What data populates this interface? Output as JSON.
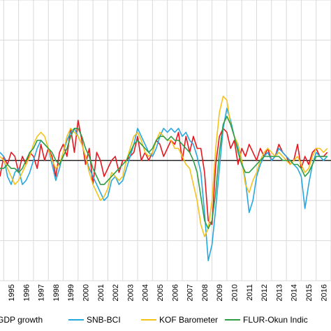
{
  "chart_data": {
    "type": "line",
    "title": "",
    "xlabel": "",
    "ylabel": "",
    "ylim": [
      -3,
      4
    ],
    "x_range": [
      1994.75,
      2017.0
    ],
    "grid": true,
    "legend_position": "bottom",
    "zero_line_color": "#000000",
    "grid_color": "#d9d9d9",
    "categories": [
      "1995",
      "1996",
      "1997",
      "1998",
      "1999",
      "2000",
      "2001",
      "2002",
      "2003",
      "2004",
      "2005",
      "2006",
      "2007",
      "2008",
      "2009",
      "2010",
      "2011",
      "2012",
      "2013",
      "2014",
      "2015",
      "2016"
    ],
    "legend": [
      {
        "label": "GDP growth",
        "color": "#e8161e"
      },
      {
        "label": "SNB-BCI",
        "color": "#27a7e0"
      },
      {
        "label": "KOF Barometer",
        "color": "#f5c21d"
      },
      {
        "label": "FLUR-Okun Indic",
        "color": "#2e9e45"
      }
    ],
    "series": [
      {
        "name": "GDP growth",
        "color": "#e8161e",
        "x": [
          1994.75,
          1995.0,
          1995.25,
          1995.5,
          1995.75,
          1996.0,
          1996.25,
          1996.5,
          1996.75,
          1997.0,
          1997.25,
          1997.5,
          1997.75,
          1998.0,
          1998.25,
          1998.5,
          1998.75,
          1999.0,
          1999.25,
          1999.5,
          1999.75,
          2000.0,
          2000.25,
          2000.5,
          2000.75,
          2001.0,
          2001.25,
          2001.5,
          2001.75,
          2002.0,
          2002.25,
          2002.5,
          2002.75,
          2003.0,
          2003.25,
          2003.5,
          2003.75,
          2004.0,
          2004.25,
          2004.5,
          2004.75,
          2005.0,
          2005.25,
          2005.5,
          2005.75,
          2006.0,
          2006.25,
          2006.5,
          2006.75,
          2007.0,
          2007.25,
          2007.5,
          2007.75,
          2008.0,
          2008.25,
          2008.5,
          2008.75,
          2009.0,
          2009.25,
          2009.5,
          2009.75,
          2010.0,
          2010.25,
          2010.5,
          2010.75,
          2011.0,
          2011.25,
          2011.5,
          2011.75,
          2012.0,
          2012.25,
          2012.5,
          2012.75,
          2013.0,
          2013.25,
          2013.5,
          2013.75,
          2014.0,
          2014.25,
          2014.5,
          2014.75,
          2015.0,
          2015.25,
          2015.5,
          2015.75,
          2016.0,
          2016.25,
          2016.5,
          2016.75
        ],
        "values": [
          -0.4,
          0.1,
          -0.1,
          0.2,
          0.1,
          -0.3,
          0.1,
          -0.1,
          0.2,
          0.1,
          -0.2,
          0.4,
          0.0,
          0.3,
          0.1,
          -0.4,
          0.2,
          0.4,
          0.1,
          0.8,
          0.2,
          1.0,
          0.5,
          -0.1,
          0.3,
          -0.6,
          0.2,
          0.0,
          -0.4,
          -0.2,
          0.0,
          0.1,
          -0.3,
          0.0,
          0.0,
          0.1,
          0.2,
          0.6,
          0.0,
          0.2,
          0.0,
          0.2,
          0.5,
          0.4,
          0.1,
          0.3,
          0.5,
          0.4,
          0.7,
          0.0,
          0.6,
          0.2,
          0.6,
          0.3,
          0.3,
          -0.3,
          -1.5,
          -1.6,
          -0.1,
          0.6,
          0.8,
          0.7,
          0.3,
          0.5,
          -0.1,
          0.3,
          0.1,
          0.4,
          0.2,
          0.0,
          0.3,
          0.1,
          0.3,
          0.0,
          0.1,
          0.4,
          0.2,
          0.1,
          -0.1,
          0.0,
          0.4,
          -0.2,
          0.1,
          -0.1,
          0.2,
          0.3,
          0.1,
          0.1,
          0.2
        ]
      },
      {
        "name": "SNB-BCI",
        "color": "#27a7e0",
        "x": [
          1994.75,
          1995.0,
          1995.25,
          1995.5,
          1995.75,
          1996.0,
          1996.25,
          1996.5,
          1996.75,
          1997.0,
          1997.25,
          1997.5,
          1997.75,
          1998.0,
          1998.25,
          1998.5,
          1998.75,
          1999.0,
          1999.25,
          1999.5,
          1999.75,
          2000.0,
          2000.25,
          2000.5,
          2000.75,
          2001.0,
          2001.25,
          2001.5,
          2001.75,
          2002.0,
          2002.25,
          2002.5,
          2002.75,
          2003.0,
          2003.25,
          2003.5,
          2003.75,
          2004.0,
          2004.25,
          2004.5,
          2004.75,
          2005.0,
          2005.25,
          2005.5,
          2005.75,
          2006.0,
          2006.25,
          2006.5,
          2006.75,
          2007.0,
          2007.25,
          2007.5,
          2007.75,
          2008.0,
          2008.25,
          2008.5,
          2008.75,
          2009.0,
          2009.25,
          2009.5,
          2009.75,
          2010.0,
          2010.25,
          2010.5,
          2010.75,
          2011.0,
          2011.25,
          2011.5,
          2011.75,
          2012.0,
          2012.25,
          2012.5,
          2012.75,
          2013.0,
          2013.25,
          2013.5,
          2013.75,
          2014.0,
          2014.25,
          2014.5,
          2014.75,
          2015.0,
          2015.25,
          2015.5,
          2015.75,
          2016.0,
          2016.25,
          2016.5,
          2016.75
        ],
        "values": [
          0.2,
          0.1,
          -0.4,
          -0.6,
          -0.3,
          -0.2,
          -0.6,
          -0.5,
          -0.3,
          0.0,
          0.3,
          0.5,
          0.4,
          0.3,
          -0.1,
          -0.5,
          -0.2,
          0.2,
          0.5,
          0.7,
          0.8,
          0.6,
          0.4,
          0.1,
          -0.2,
          -0.4,
          -0.6,
          -0.8,
          -1.0,
          -0.9,
          -0.5,
          -0.4,
          -0.6,
          -0.5,
          -0.2,
          0.1,
          0.4,
          0.8,
          0.6,
          0.4,
          0.2,
          0.1,
          0.3,
          0.6,
          0.8,
          0.7,
          0.8,
          0.7,
          0.8,
          0.6,
          0.7,
          0.5,
          0.4,
          0.1,
          -0.3,
          -1.3,
          -2.5,
          -2.1,
          -1.2,
          -0.2,
          0.8,
          1.3,
          1.0,
          0.6,
          0.3,
          0.0,
          -0.5,
          -1.3,
          -1.0,
          -0.4,
          -0.1,
          0.1,
          0.2,
          0.0,
          0.1,
          0.3,
          0.2,
          0.1,
          0.0,
          -0.1,
          -0.2,
          -0.4,
          -1.2,
          -0.6,
          -0.1,
          0.2,
          0.1,
          0.0,
          0.1
        ]
      },
      {
        "name": "KOF Barometer",
        "color": "#f5c21d",
        "x": [
          1994.75,
          1995.0,
          1995.25,
          1995.5,
          1995.75,
          1996.0,
          1996.25,
          1996.5,
          1996.75,
          1997.0,
          1997.25,
          1997.5,
          1997.75,
          1998.0,
          1998.25,
          1998.5,
          1998.75,
          1999.0,
          1999.25,
          1999.5,
          1999.75,
          2000.0,
          2000.25,
          2000.5,
          2000.75,
          2001.0,
          2001.25,
          2001.5,
          2001.75,
          2002.0,
          2002.25,
          2002.5,
          2002.75,
          2003.0,
          2003.25,
          2003.5,
          2003.75,
          2004.0,
          2004.25,
          2004.5,
          2004.75,
          2005.0,
          2005.25,
          2005.5,
          2005.75,
          2006.0,
          2006.25,
          2006.5,
          2006.75,
          2007.0,
          2007.25,
          2007.5,
          2007.75,
          2008.0,
          2008.25,
          2008.5,
          2008.75,
          2009.0,
          2009.25,
          2009.5,
          2009.75,
          2010.0,
          2010.25,
          2010.5,
          2010.75,
          2011.0,
          2011.25,
          2011.5,
          2011.75,
          2012.0,
          2012.25,
          2012.5,
          2012.75,
          2013.0,
          2013.25,
          2013.5,
          2013.75,
          2014.0,
          2014.25,
          2014.5,
          2014.75,
          2015.0,
          2015.25,
          2015.5,
          2015.75,
          2016.0,
          2016.25,
          2016.5,
          2016.75
        ],
        "values": [
          0.1,
          0.0,
          -0.2,
          -0.4,
          -0.6,
          -0.5,
          -0.3,
          -0.1,
          0.1,
          0.4,
          0.6,
          0.7,
          0.6,
          0.3,
          0.0,
          -0.2,
          -0.1,
          0.2,
          0.6,
          0.8,
          0.7,
          0.6,
          0.4,
          0.1,
          -0.3,
          -0.6,
          -0.8,
          -1.0,
          -0.9,
          -0.7,
          -0.3,
          -0.4,
          -0.5,
          -0.4,
          0.0,
          0.3,
          0.6,
          0.7,
          0.5,
          0.2,
          0.1,
          0.2,
          0.5,
          0.7,
          0.6,
          0.5,
          0.5,
          0.3,
          0.3,
          0.1,
          -0.1,
          -0.2,
          -0.6,
          -1.0,
          -1.6,
          -1.9,
          -1.7,
          -1.0,
          0.3,
          1.2,
          1.6,
          1.5,
          0.9,
          0.6,
          0.4,
          0.0,
          -0.6,
          -0.8,
          -0.5,
          -0.3,
          0.0,
          0.2,
          0.3,
          0.2,
          0.1,
          0.2,
          0.1,
          0.0,
          -0.1,
          0.0,
          0.1,
          -0.1,
          -0.3,
          -0.2,
          0.1,
          0.3,
          0.3,
          0.2,
          0.3
        ]
      },
      {
        "name": "FLUR-Okun Indic",
        "color": "#2e9e45",
        "x": [
          1994.75,
          1995.0,
          1995.25,
          1995.5,
          1995.75,
          1996.0,
          1996.25,
          1996.5,
          1996.75,
          1997.0,
          1997.25,
          1997.5,
          1997.75,
          1998.0,
          1998.25,
          1998.5,
          1998.75,
          1999.0,
          1999.25,
          1999.5,
          1999.75,
          2000.0,
          2000.25,
          2000.5,
          2000.75,
          2001.0,
          2001.25,
          2001.5,
          2001.75,
          2002.0,
          2002.25,
          2002.5,
          2002.75,
          2003.0,
          2003.25,
          2003.5,
          2003.75,
          2004.0,
          2004.25,
          2004.5,
          2004.75,
          2005.0,
          2005.25,
          2005.5,
          2005.75,
          2006.0,
          2006.25,
          2006.5,
          2006.75,
          2007.0,
          2007.25,
          2007.5,
          2007.75,
          2008.0,
          2008.25,
          2008.5,
          2008.75,
          2009.0,
          2009.25,
          2009.5,
          2009.75,
          2010.0,
          2010.25,
          2010.5,
          2010.75,
          2011.0,
          2011.25,
          2011.5,
          2011.75,
          2012.0,
          2012.25,
          2012.5,
          2012.75,
          2013.0,
          2013.25,
          2013.5,
          2013.75,
          2014.0,
          2014.25,
          2014.5,
          2014.75,
          2015.0,
          2015.25,
          2015.5,
          2015.75,
          2016.0,
          2016.25,
          2016.5,
          2016.75
        ],
        "values": [
          -0.2,
          -0.2,
          -0.1,
          -0.2,
          -0.2,
          -0.3,
          -0.2,
          0.0,
          0.2,
          0.3,
          0.5,
          0.5,
          0.4,
          0.3,
          0.2,
          0.0,
          -0.1,
          0.1,
          0.3,
          0.6,
          0.8,
          0.8,
          0.6,
          0.3,
          0.1,
          -0.2,
          -0.4,
          -0.6,
          -0.6,
          -0.5,
          -0.4,
          -0.3,
          -0.2,
          -0.1,
          0.0,
          0.2,
          0.4,
          0.5,
          0.4,
          0.3,
          0.2,
          0.3,
          0.5,
          0.6,
          0.6,
          0.5,
          0.6,
          0.5,
          0.5,
          0.4,
          0.3,
          0.2,
          0.0,
          -0.3,
          -0.9,
          -1.5,
          -1.7,
          -1.5,
          -0.8,
          0.2,
          0.9,
          1.1,
          0.9,
          0.6,
          0.2,
          -0.1,
          -0.3,
          -0.3,
          -0.2,
          -0.1,
          0.0,
          0.1,
          0.1,
          0.1,
          0.1,
          0.1,
          0.0,
          0.0,
          0.0,
          -0.1,
          -0.1,
          -0.2,
          -0.4,
          -0.3,
          -0.1,
          0.1,
          0.1,
          0.1,
          0.1
        ]
      }
    ]
  }
}
